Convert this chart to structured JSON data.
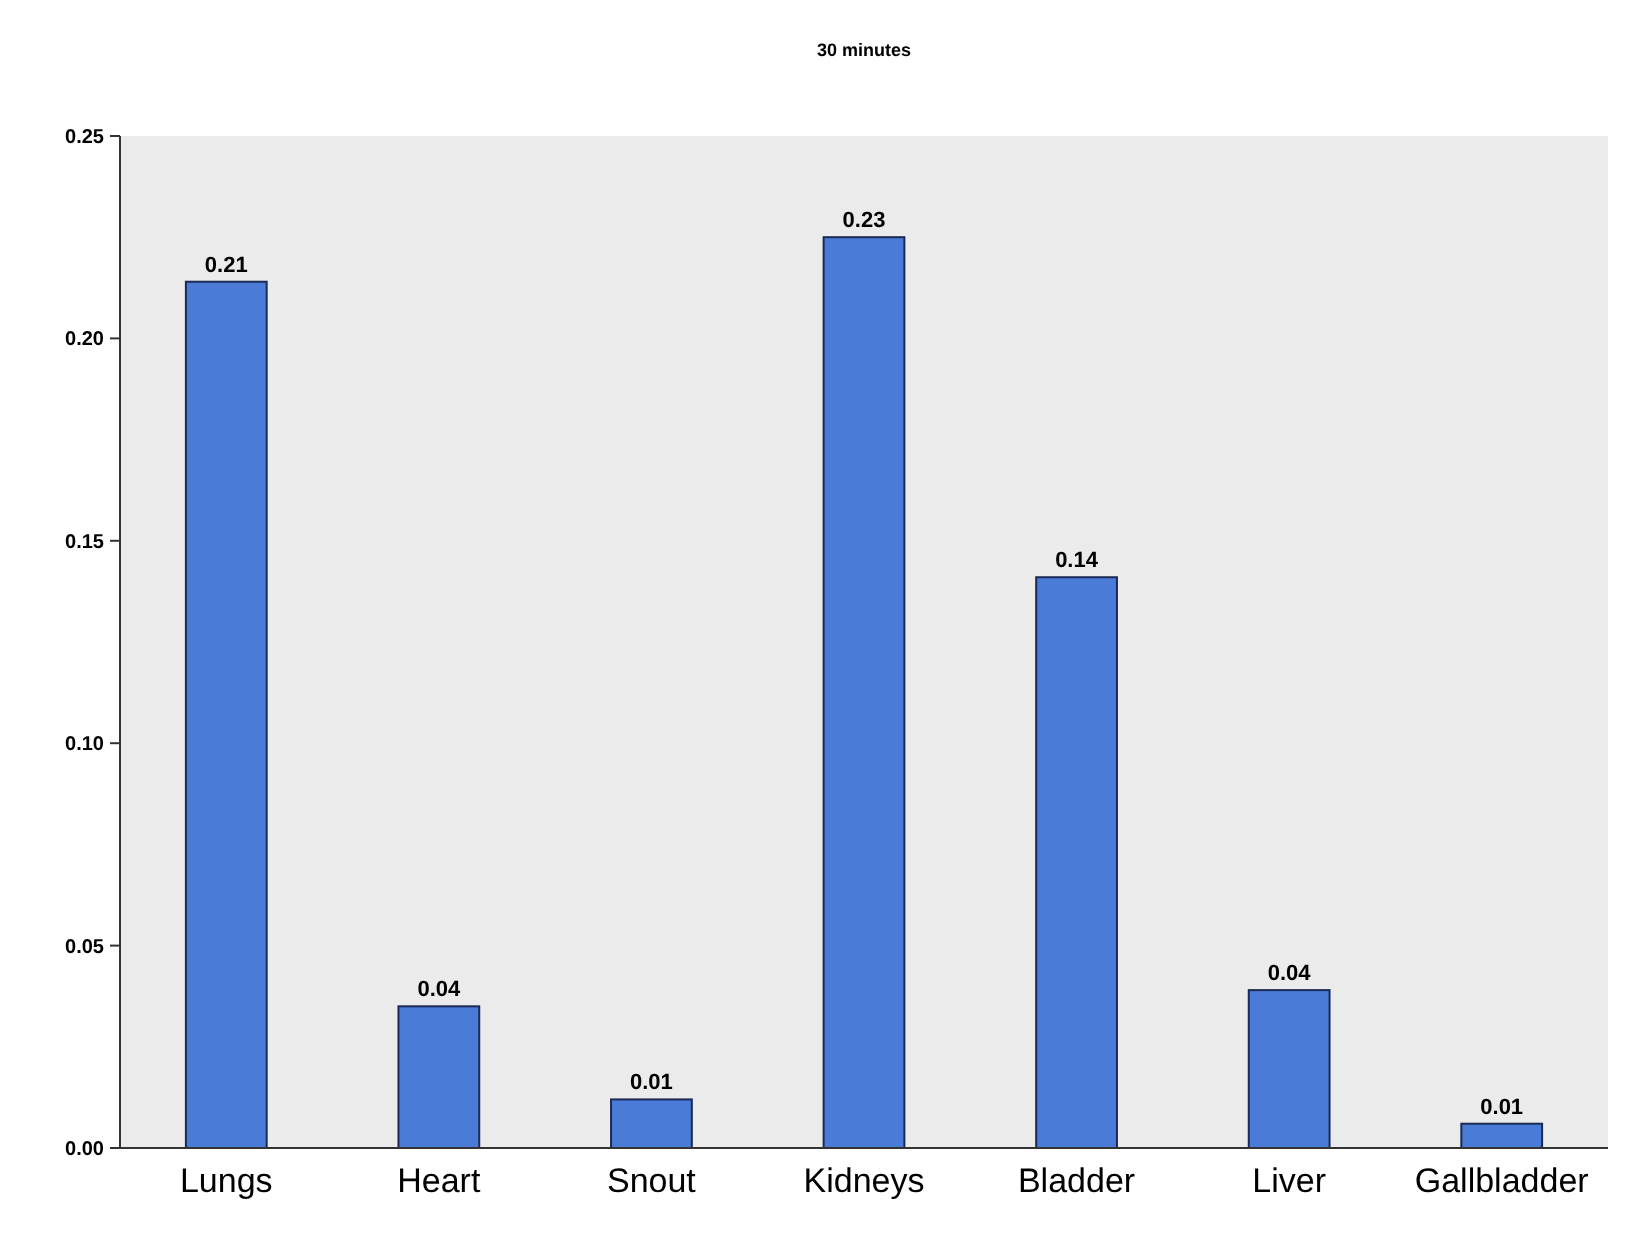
{
  "chart_data": {
    "type": "bar",
    "title": "30 minutes",
    "categories": [
      "Lungs",
      "Heart",
      "Snout",
      "Kidneys",
      "Bladder",
      "Liver",
      "Gallbladder"
    ],
    "values": [
      0.214,
      0.035,
      0.012,
      0.225,
      0.141,
      0.039,
      0.006
    ],
    "value_labels": [
      "0.21",
      "0.04",
      "0.01",
      "0.23",
      "0.14",
      "0.04",
      "0.01"
    ],
    "color": "#4a7bd6",
    "ylim": [
      0,
      0.25
    ],
    "yticks": [
      {
        "value": 0,
        "label": "0.00"
      },
      {
        "value": 0.05,
        "label": "0.05"
      },
      {
        "value": 0.1,
        "label": "0.10"
      },
      {
        "value": 0.15,
        "label": "0.15"
      },
      {
        "value": 0.2,
        "label": "0.20"
      },
      {
        "value": 0.25,
        "label": "0.25"
      }
    ],
    "grid": false
  }
}
